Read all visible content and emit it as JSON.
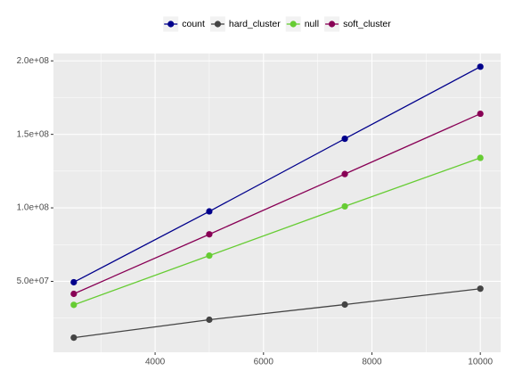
{
  "chart_data": {
    "type": "line",
    "x": [
      2500,
      5000,
      7500,
      10000
    ],
    "series": [
      {
        "name": "count",
        "color": "#00008B",
        "values": [
          49400000,
          97600000,
          147000000,
          196000000
        ]
      },
      {
        "name": "hard_cluster",
        "color": "#444444",
        "values": [
          11700000,
          23900000,
          34200000,
          45000000
        ]
      },
      {
        "name": "null",
        "color": "#66CC33",
        "values": [
          34000000,
          67500000,
          101000000,
          134000000
        ]
      },
      {
        "name": "soft_cluster",
        "color": "#880055",
        "values": [
          41500000,
          82000000,
          123000000,
          164000000
        ]
      }
    ],
    "xlim": [
      2125,
      10375
    ],
    "xticks": [
      4000,
      6000,
      8000,
      10000
    ],
    "ylim": [
      1750000,
      205000000
    ],
    "yticks": [
      {
        "value": 50000000,
        "label": "5.0e+07"
      },
      {
        "value": 100000000,
        "label": "1.0e+08"
      },
      {
        "value": 150000000,
        "label": "1.5e+08"
      },
      {
        "value": 200000000,
        "label": "2.0e+08"
      }
    ],
    "grid": true,
    "legend": "top"
  }
}
